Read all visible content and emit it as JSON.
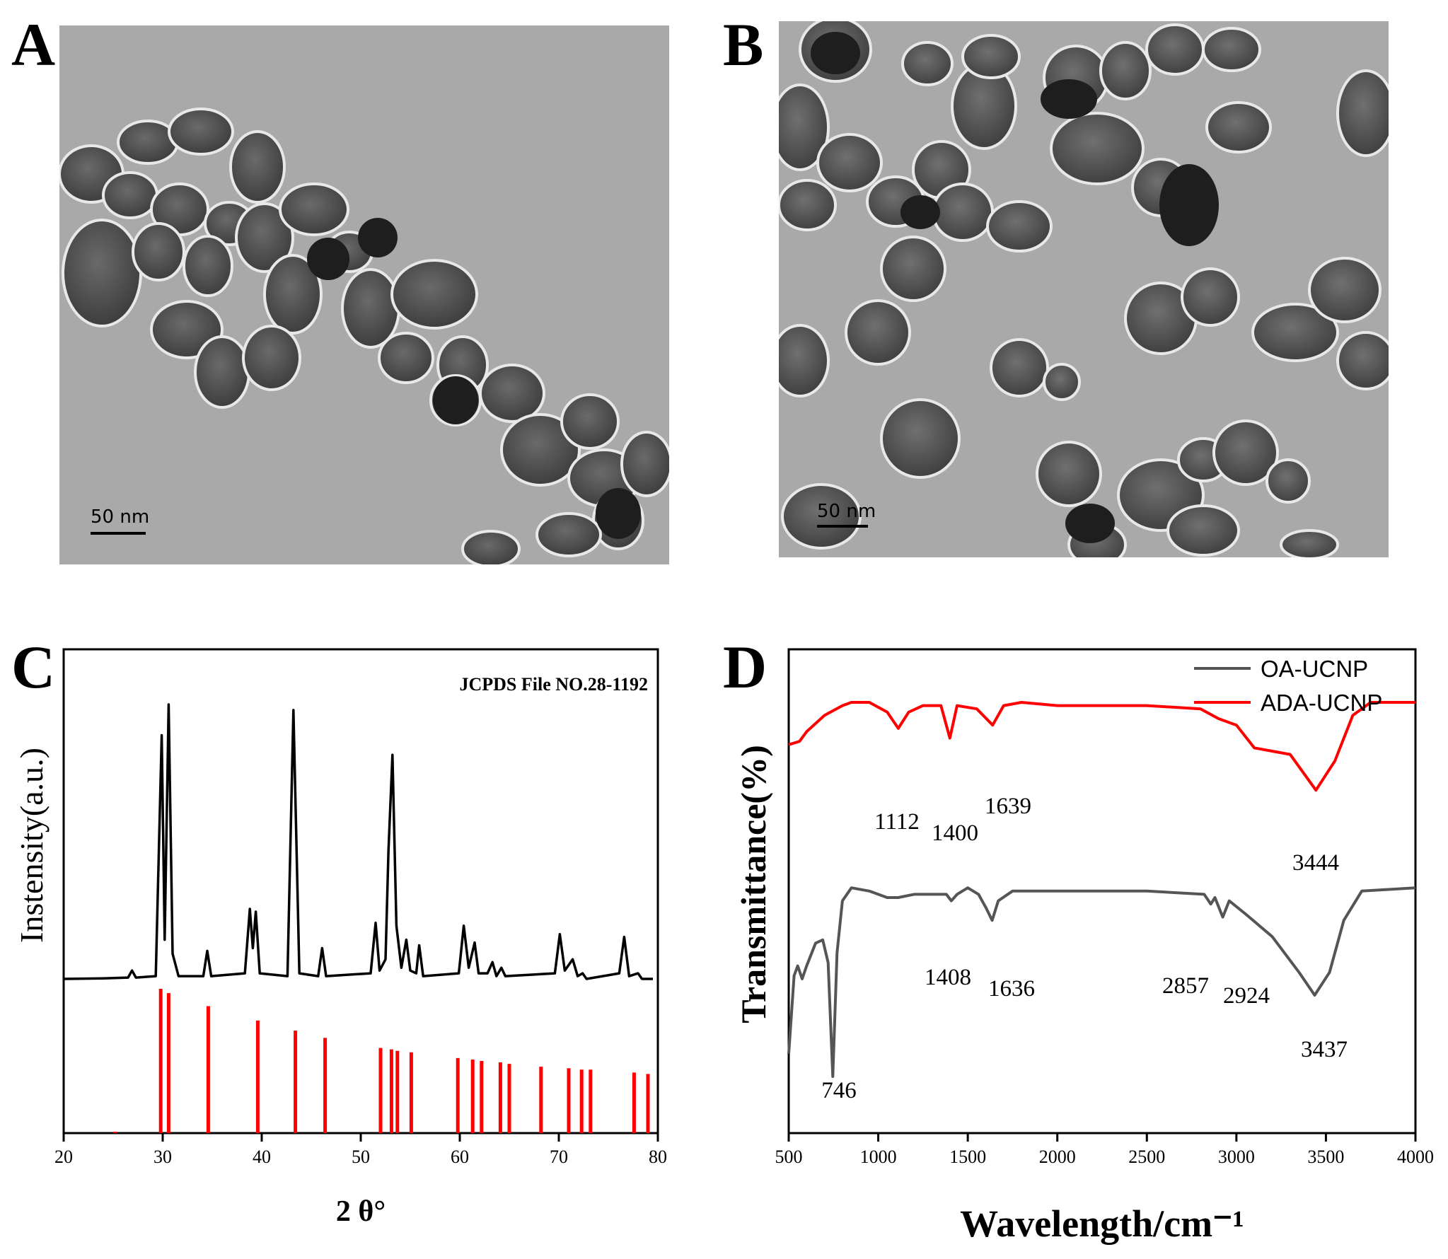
{
  "panels": {
    "a": {
      "letter": "A",
      "scale_label": "50 nm"
    },
    "b": {
      "letter": "B",
      "scale_label": "50 nm"
    },
    "c": {
      "letter": "C"
    },
    "d": {
      "letter": "D"
    }
  },
  "chart_data": [
    {
      "id": "C",
      "type": "line",
      "xlabel": "2 θ°",
      "ylabel": "Instensity(a.u.)",
      "xlim": [
        20,
        80
      ],
      "xticks": [
        20,
        30,
        40,
        50,
        60,
        70,
        80
      ],
      "annotation": "JCPDS File NO.28-1192",
      "colors": {
        "measured": "#000000",
        "reference": "#ff0000"
      },
      "series": [
        {
          "points": [
            [
              20,
              0.01
            ],
            [
              24,
              0.012
            ],
            [
              26.5,
              0.015
            ],
            [
              26.9,
              0.04
            ],
            [
              27.3,
              0.015
            ],
            [
              29.3,
              0.02
            ],
            [
              29.9,
              0.88
            ],
            [
              30.2,
              0.15
            ],
            [
              30.6,
              0.99
            ],
            [
              31.0,
              0.1
            ],
            [
              31.6,
              0.02
            ],
            [
              34.1,
              0.02
            ],
            [
              34.5,
              0.11
            ],
            [
              34.9,
              0.02
            ],
            [
              38.3,
              0.03
            ],
            [
              38.8,
              0.26
            ],
            [
              39.1,
              0.12
            ],
            [
              39.4,
              0.25
            ],
            [
              39.8,
              0.03
            ],
            [
              42.6,
              0.02
            ],
            [
              43.2,
              0.97
            ],
            [
              43.8,
              0.03
            ],
            [
              45.7,
              0.02
            ],
            [
              46.1,
              0.12
            ],
            [
              46.5,
              0.02
            ],
            [
              51.0,
              0.03
            ],
            [
              51.5,
              0.21
            ],
            [
              51.9,
              0.04
            ],
            [
              52.5,
              0.08
            ],
            [
              52.8,
              0.47
            ],
            [
              53.2,
              0.81
            ],
            [
              53.6,
              0.2
            ],
            [
              54.1,
              0.05
            ],
            [
              54.6,
              0.15
            ],
            [
              55.0,
              0.04
            ],
            [
              55.6,
              0.03
            ],
            [
              55.9,
              0.13
            ],
            [
              56.3,
              0.02
            ],
            [
              59.9,
              0.03
            ],
            [
              60.4,
              0.2
            ],
            [
              60.9,
              0.05
            ],
            [
              61.5,
              0.14
            ],
            [
              61.9,
              0.03
            ],
            [
              62.8,
              0.03
            ],
            [
              63.3,
              0.07
            ],
            [
              63.7,
              0.02
            ],
            [
              64.2,
              0.05
            ],
            [
              64.6,
              0.02
            ],
            [
              69.6,
              0.03
            ],
            [
              70.1,
              0.17
            ],
            [
              70.6,
              0.04
            ],
            [
              71.4,
              0.08
            ],
            [
              71.9,
              0.02
            ],
            [
              72.4,
              0.03
            ],
            [
              72.8,
              0.01
            ],
            [
              76.1,
              0.03
            ],
            [
              76.6,
              0.16
            ],
            [
              77.1,
              0.02
            ],
            [
              78.0,
              0.03
            ],
            [
              78.4,
              0.01
            ],
            [
              79.5,
              0.01
            ]
          ]
        }
      ],
      "reference_lines": [
        [
          25.2,
          0.01
        ],
        [
          29.8,
          1.0
        ],
        [
          30.6,
          0.97
        ],
        [
          34.6,
          0.88
        ],
        [
          39.6,
          0.78
        ],
        [
          43.4,
          0.71
        ],
        [
          46.4,
          0.66
        ],
        [
          52.0,
          0.59
        ],
        [
          53.1,
          0.58
        ],
        [
          53.7,
          0.57
        ],
        [
          55.1,
          0.56
        ],
        [
          59.8,
          0.52
        ],
        [
          61.3,
          0.51
        ],
        [
          62.2,
          0.5
        ],
        [
          64.1,
          0.49
        ],
        [
          65.0,
          0.48
        ],
        [
          68.2,
          0.46
        ],
        [
          71.0,
          0.45
        ],
        [
          72.3,
          0.44
        ],
        [
          73.2,
          0.44
        ],
        [
          77.6,
          0.42
        ],
        [
          79.0,
          0.41
        ]
      ]
    },
    {
      "id": "D",
      "type": "line",
      "xlabel": "Wavelength/cm⁻¹",
      "ylabel": "Transmittance(%)",
      "xlim": [
        500,
        4000
      ],
      "xticks": [
        500,
        1000,
        1500,
        2000,
        2500,
        3000,
        3500,
        4000
      ],
      "legend": "top-right",
      "series": [
        {
          "name": "OA-UCNP",
          "color": "#555555",
          "points": [
            [
              500,
              0.12
            ],
            [
              530,
              0.36
            ],
            [
              550,
              0.39
            ],
            [
              575,
              0.35
            ],
            [
              600,
              0.39
            ],
            [
              650,
              0.46
            ],
            [
              690,
              0.47
            ],
            [
              720,
              0.4
            ],
            [
              746,
              0.05
            ],
            [
              770,
              0.43
            ],
            [
              800,
              0.59
            ],
            [
              850,
              0.63
            ],
            [
              950,
              0.62
            ],
            [
              1050,
              0.6
            ],
            [
              1112,
              0.6
            ],
            [
              1200,
              0.61
            ],
            [
              1300,
              0.61
            ],
            [
              1380,
              0.61
            ],
            [
              1408,
              0.59
            ],
            [
              1440,
              0.61
            ],
            [
              1500,
              0.63
            ],
            [
              1560,
              0.61
            ],
            [
              1600,
              0.57
            ],
            [
              1636,
              0.53
            ],
            [
              1670,
              0.59
            ],
            [
              1750,
              0.62
            ],
            [
              2000,
              0.62
            ],
            [
              2500,
              0.62
            ],
            [
              2820,
              0.61
            ],
            [
              2857,
              0.58
            ],
            [
              2880,
              0.6
            ],
            [
              2924,
              0.54
            ],
            [
              2960,
              0.59
            ],
            [
              3050,
              0.55
            ],
            [
              3200,
              0.48
            ],
            [
              3350,
              0.37
            ],
            [
              3437,
              0.3
            ],
            [
              3520,
              0.37
            ],
            [
              3600,
              0.53
            ],
            [
              3700,
              0.62
            ],
            [
              4000,
              0.63
            ]
          ]
        },
        {
          "name": "ADA-UCNP",
          "color": "#ff0000",
          "points": [
            [
              500,
              1.07
            ],
            [
              560,
              1.08
            ],
            [
              600,
              1.11
            ],
            [
              700,
              1.16
            ],
            [
              800,
              1.19
            ],
            [
              850,
              1.2
            ],
            [
              950,
              1.2
            ],
            [
              1050,
              1.17
            ],
            [
              1112,
              1.12
            ],
            [
              1170,
              1.17
            ],
            [
              1250,
              1.19
            ],
            [
              1350,
              1.19
            ],
            [
              1400,
              1.09
            ],
            [
              1440,
              1.19
            ],
            [
              1550,
              1.18
            ],
            [
              1639,
              1.13
            ],
            [
              1700,
              1.19
            ],
            [
              1800,
              1.2
            ],
            [
              2000,
              1.19
            ],
            [
              2500,
              1.19
            ],
            [
              2800,
              1.18
            ],
            [
              2900,
              1.15
            ],
            [
              3000,
              1.13
            ],
            [
              3100,
              1.06
            ],
            [
              3200,
              1.05
            ],
            [
              3300,
              1.04
            ],
            [
              3444,
              0.93
            ],
            [
              3550,
              1.02
            ],
            [
              3650,
              1.16
            ],
            [
              3750,
              1.2
            ],
            [
              4000,
              1.2
            ]
          ]
        }
      ],
      "peak_labels": [
        "746",
        "1112",
        "1400",
        "1639",
        "1408",
        "1636",
        "2857",
        "2924",
        "3437",
        "3444"
      ]
    }
  ]
}
